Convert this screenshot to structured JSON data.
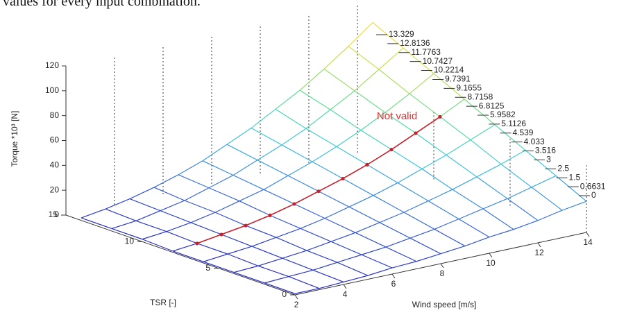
{
  "header_text": "values for every input combination.",
  "chart_data": {
    "type": "surface3d",
    "xlabel": "Wind speed [m/s]",
    "ylabel": "TSR [-]",
    "zlabel": "Torque *10³ [N]",
    "x": [
      2,
      3,
      4,
      5,
      6,
      7,
      8,
      9,
      10,
      11,
      12,
      13,
      14
    ],
    "y": [
      0,
      2,
      4,
      6,
      8,
      10,
      12,
      14
    ],
    "values": [
      [
        1,
        1,
        2,
        3,
        5,
        6,
        8,
        10,
        13,
        15,
        18,
        22,
        25
      ],
      [
        1,
        2,
        3,
        5,
        7,
        9,
        12,
        15,
        19,
        23,
        27,
        32,
        37
      ],
      [
        1,
        2,
        4,
        6,
        9,
        12,
        16,
        20,
        25,
        30,
        36,
        42,
        49
      ],
      [
        1,
        3,
        5,
        8,
        11,
        15,
        20,
        25,
        31,
        38,
        45,
        53,
        61
      ],
      [
        1,
        3,
        6,
        9,
        13,
        18,
        24,
        30,
        37,
        45,
        54,
        63,
        73
      ],
      [
        2,
        4,
        7,
        11,
        16,
        21,
        28,
        35,
        43,
        52,
        62,
        73,
        85
      ],
      [
        2,
        4,
        8,
        12,
        18,
        24,
        32,
        40,
        49,
        60,
        71,
        84,
        97
      ],
      [
        2,
        5,
        9,
        14,
        20,
        27,
        36,
        45,
        56,
        67,
        80,
        94,
        109
      ]
    ],
    "xlim": [
      2,
      14
    ],
    "ylim": [
      0,
      15
    ],
    "zlim": [
      0,
      120
    ],
    "xticks": [
      2,
      4,
      6,
      8,
      10,
      12,
      14
    ],
    "yticks": [
      0,
      5,
      10,
      15
    ],
    "zticks": [
      0,
      20,
      40,
      60,
      80,
      100,
      120
    ],
    "grid": true,
    "annotation": "Not valid",
    "annotation_color": "#d33",
    "edge_labels": [
      "13.329",
      "12.8136",
      "11.7763",
      "10.7427",
      "10.2214",
      "9.7391",
      "9.1655",
      "8.7158",
      "6.8125",
      "5.9582",
      "5.1126",
      "4.539",
      "4.033",
      "3.516",
      "3",
      "2.5",
      "1.5",
      "0.6631",
      "0"
    ],
    "optimal": {
      "color": "#c8202a",
      "wind": [
        3,
        4,
        5,
        6,
        7,
        8,
        9,
        10,
        11,
        12,
        13
      ],
      "tsr": [
        8,
        8,
        8,
        8,
        8,
        8,
        8,
        8,
        8,
        8,
        8
      ],
      "values": [
        3,
        6,
        9,
        13,
        18,
        24,
        30,
        37,
        45,
        54,
        63
      ]
    }
  }
}
